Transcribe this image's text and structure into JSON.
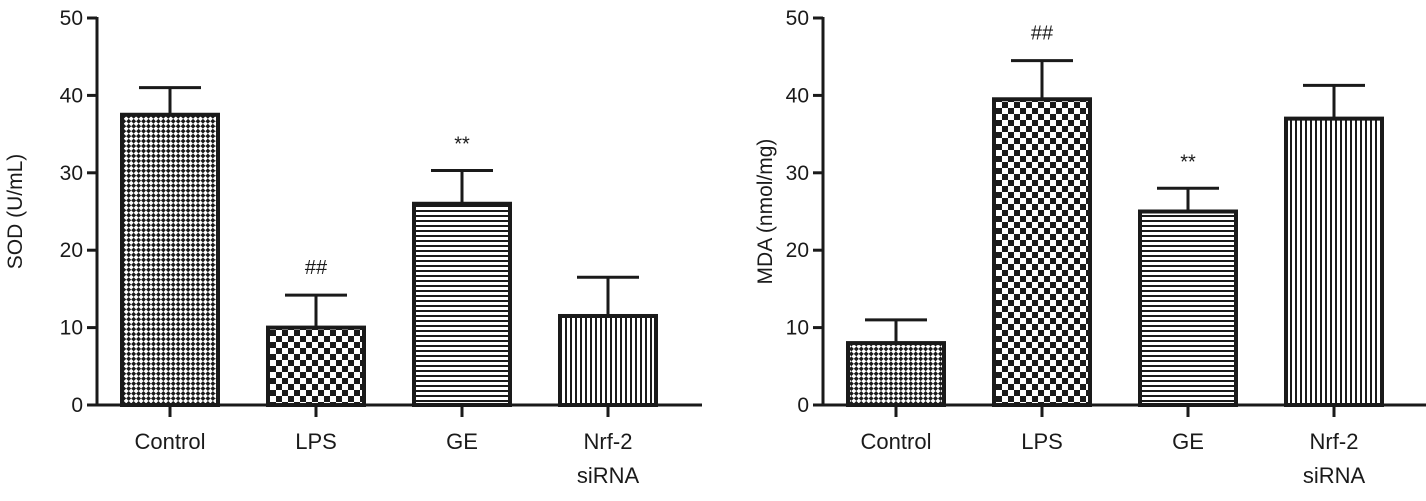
{
  "chart_data": [
    {
      "type": "bar",
      "categories": [
        "Control",
        "LPS",
        "GE",
        "Nrf-2 siRNA"
      ],
      "category_lines": [
        [
          "Control"
        ],
        [
          "LPS"
        ],
        [
          "GE"
        ],
        [
          "Nrf-2",
          "siRNA"
        ]
      ],
      "values": [
        37.5,
        10.0,
        26.0,
        11.5
      ],
      "errors": [
        3.5,
        4.2,
        4.3,
        5.0
      ],
      "annotations": [
        "",
        "##",
        "**",
        ""
      ],
      "patterns": [
        "diag-check",
        "checker",
        "hlines",
        "vlines"
      ],
      "title": "",
      "xlabel": "",
      "ylabel": "SOD (U/mL)",
      "ylim": [
        0,
        50
      ],
      "yticks": [
        0,
        10,
        20,
        30,
        40,
        50
      ],
      "grid": false
    },
    {
      "type": "bar",
      "categories": [
        "Control",
        "LPS",
        "GE",
        "Nrf-2 siRNA"
      ],
      "category_lines": [
        [
          "Control"
        ],
        [
          "LPS"
        ],
        [
          "GE"
        ],
        [
          "Nrf-2",
          "siRNA"
        ]
      ],
      "values": [
        8.0,
        39.5,
        25.0,
        37.0
      ],
      "errors": [
        3.0,
        5.0,
        3.0,
        4.3
      ],
      "annotations": [
        "",
        "##",
        "**",
        ""
      ],
      "patterns": [
        "diag-check",
        "checker",
        "hlines",
        "vlines"
      ],
      "title": "",
      "xlabel": "",
      "ylabel": "MDA (nmol/mg)",
      "ylim": [
        0,
        50
      ],
      "yticks": [
        0,
        10,
        20,
        30,
        40,
        50
      ],
      "grid": false
    }
  ]
}
